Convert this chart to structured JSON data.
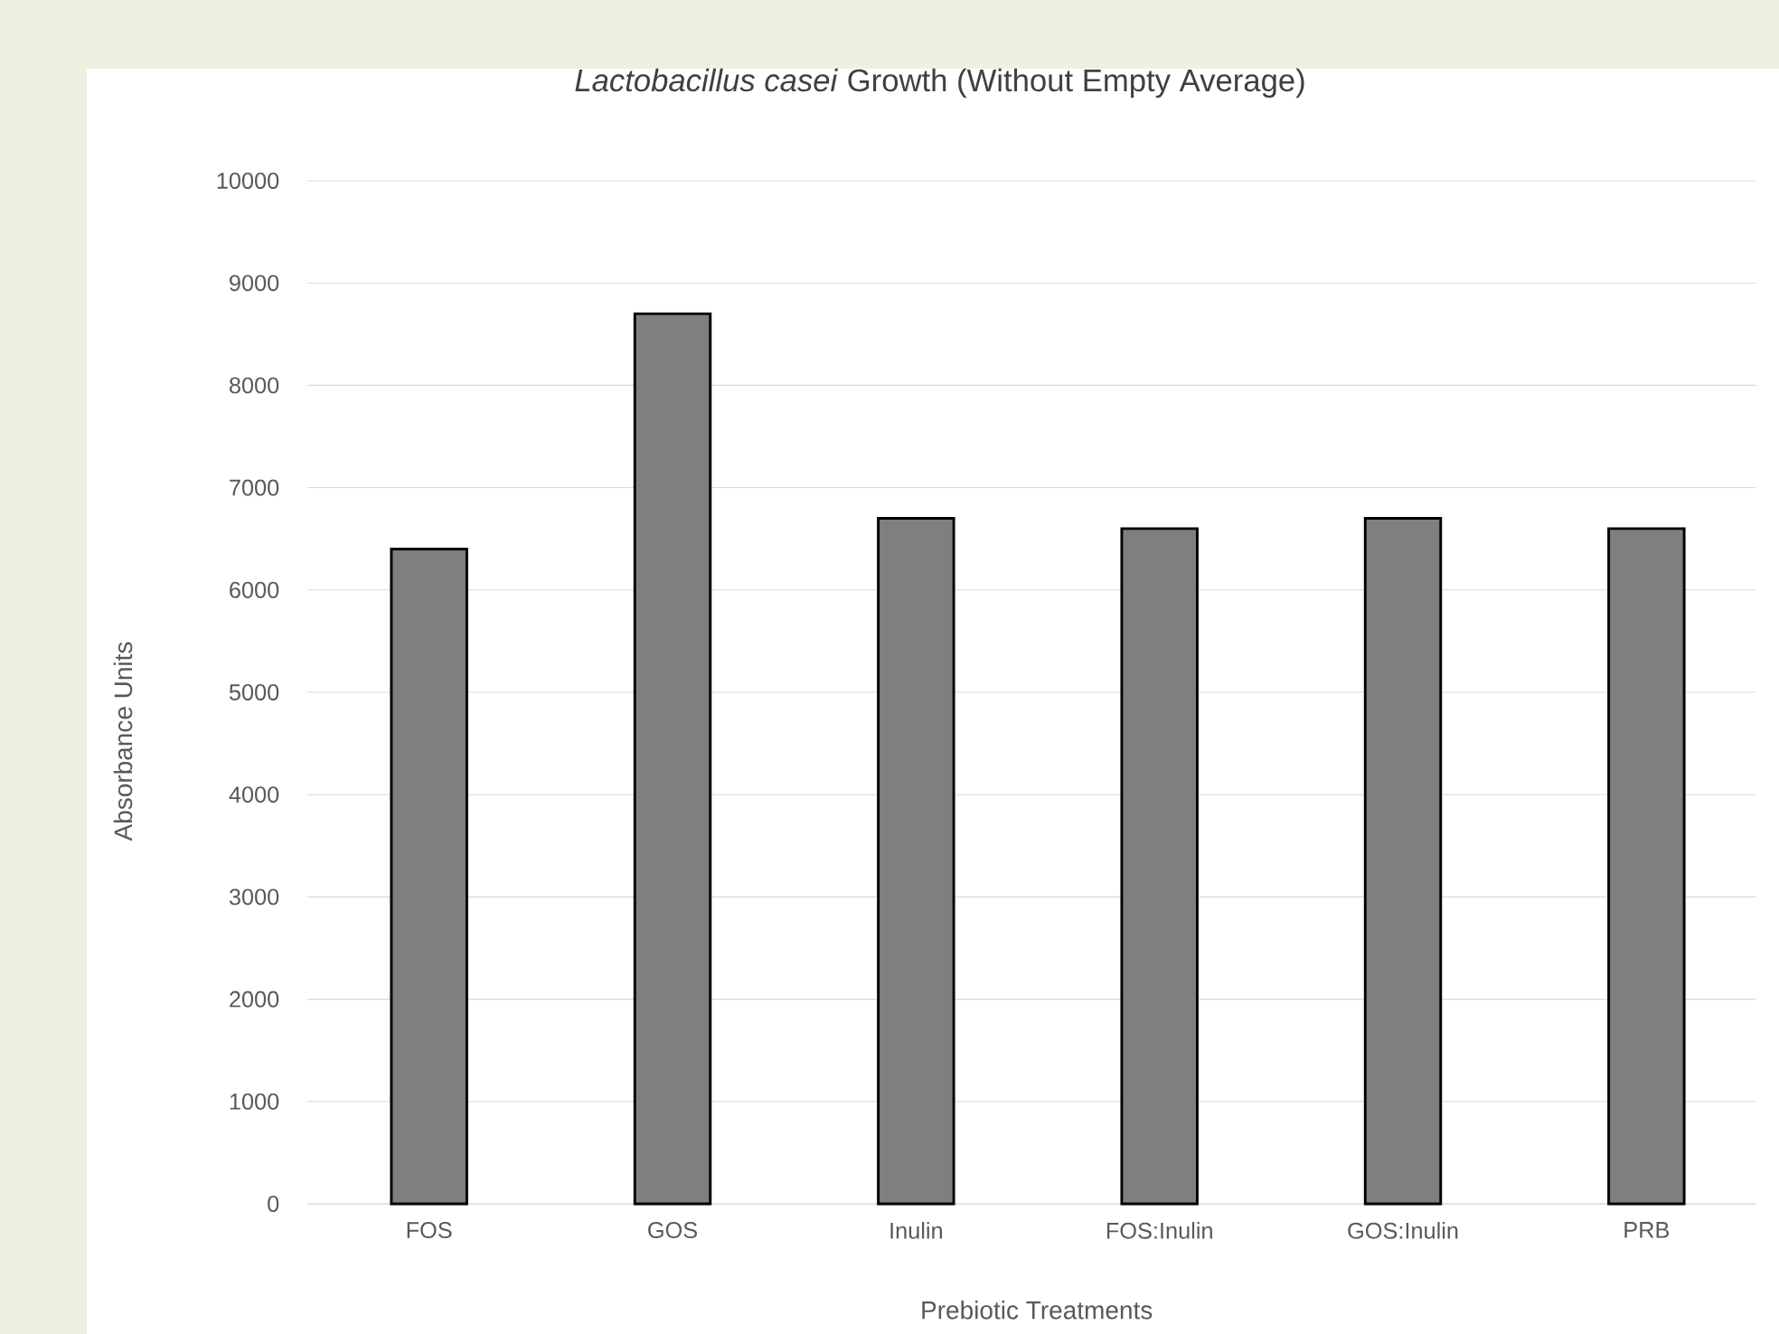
{
  "chart_data": {
    "type": "bar",
    "title": "*Lactobacillus casei* Growth (Without Empty Average)",
    "categories": [
      "FOS",
      "GOS",
      "Inulin",
      "FOS:Inulin",
      "GOS:Inulin",
      "PRB"
    ],
    "values": [
      6400,
      8700,
      6700,
      6600,
      6700,
      6600
    ],
    "color": "#7f7f7f",
    "xlabel": "Prebiotic Treatments",
    "ylabel": "Absorbance Units",
    "ylim": [
      0,
      10000
    ],
    "yticks": [
      0,
      1000,
      2000,
      3000,
      4000,
      5000,
      6000,
      7000,
      8000,
      9000,
      10000
    ],
    "grid": "y"
  }
}
